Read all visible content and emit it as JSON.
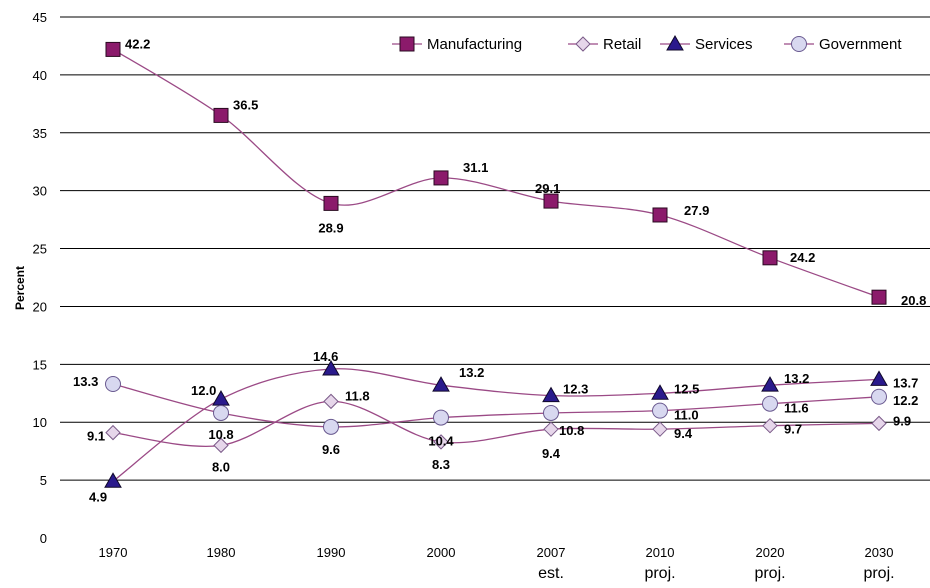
{
  "chart_data": {
    "type": "line",
    "title": "",
    "xlabel": "",
    "ylabel": "Percent",
    "ylim": [
      0,
      45
    ],
    "yticks": [
      0,
      5,
      10,
      15,
      20,
      25,
      30,
      35,
      40,
      45
    ],
    "grid": true,
    "legend_position": "top-right",
    "categories": [
      {
        "year": "1970",
        "note": ""
      },
      {
        "year": "1980",
        "note": ""
      },
      {
        "year": "1990",
        "note": ""
      },
      {
        "year": "2000",
        "note": ""
      },
      {
        "year": "2007",
        "note": "est."
      },
      {
        "year": "2010",
        "note": "proj."
      },
      {
        "year": "2020",
        "note": "proj."
      },
      {
        "year": "2030",
        "note": "proj."
      }
    ],
    "series": [
      {
        "name": "Manufacturing",
        "marker": "square",
        "color": "#8B1A6B",
        "line_color": "#9B4A86",
        "values": [
          42.2,
          36.5,
          28.9,
          31.1,
          29.1,
          27.9,
          24.2,
          20.8
        ],
        "labels": [
          "42.2",
          "36.5",
          "28.9",
          "31.1",
          "29.1",
          "27.9",
          "24.2",
          "20.8"
        ]
      },
      {
        "name": "Retail",
        "marker": "diamond",
        "color": "#E6D6EA",
        "line_color": "#9B4A86",
        "values": [
          9.1,
          8.0,
          11.8,
          8.3,
          9.4,
          9.4,
          9.7,
          9.9
        ],
        "labels": [
          "9.1",
          "8.0",
          "11.8",
          "8.3",
          "9.4",
          "9.4",
          "9.7",
          "9.9"
        ]
      },
      {
        "name": "Services",
        "marker": "triangle",
        "color": "#2A1A8C",
        "line_color": "#9B4A86",
        "values": [
          4.9,
          12.0,
          14.6,
          13.2,
          12.3,
          12.5,
          13.2,
          13.7
        ],
        "labels": [
          "4.9",
          "12.0",
          "14.6",
          "13.2",
          "12.3",
          "12.5",
          "13.2",
          "13.7"
        ]
      },
      {
        "name": "Government",
        "marker": "circle",
        "color": "#D8D8F0",
        "line_color": "#9B4A86",
        "values": [
          13.3,
          10.8,
          9.6,
          10.4,
          10.8,
          11.0,
          11.6,
          12.2
        ],
        "labels": [
          "13.3",
          "10.8",
          "9.6",
          "10.4",
          "10.8",
          "11.0",
          "11.6",
          "12.2"
        ]
      }
    ]
  }
}
